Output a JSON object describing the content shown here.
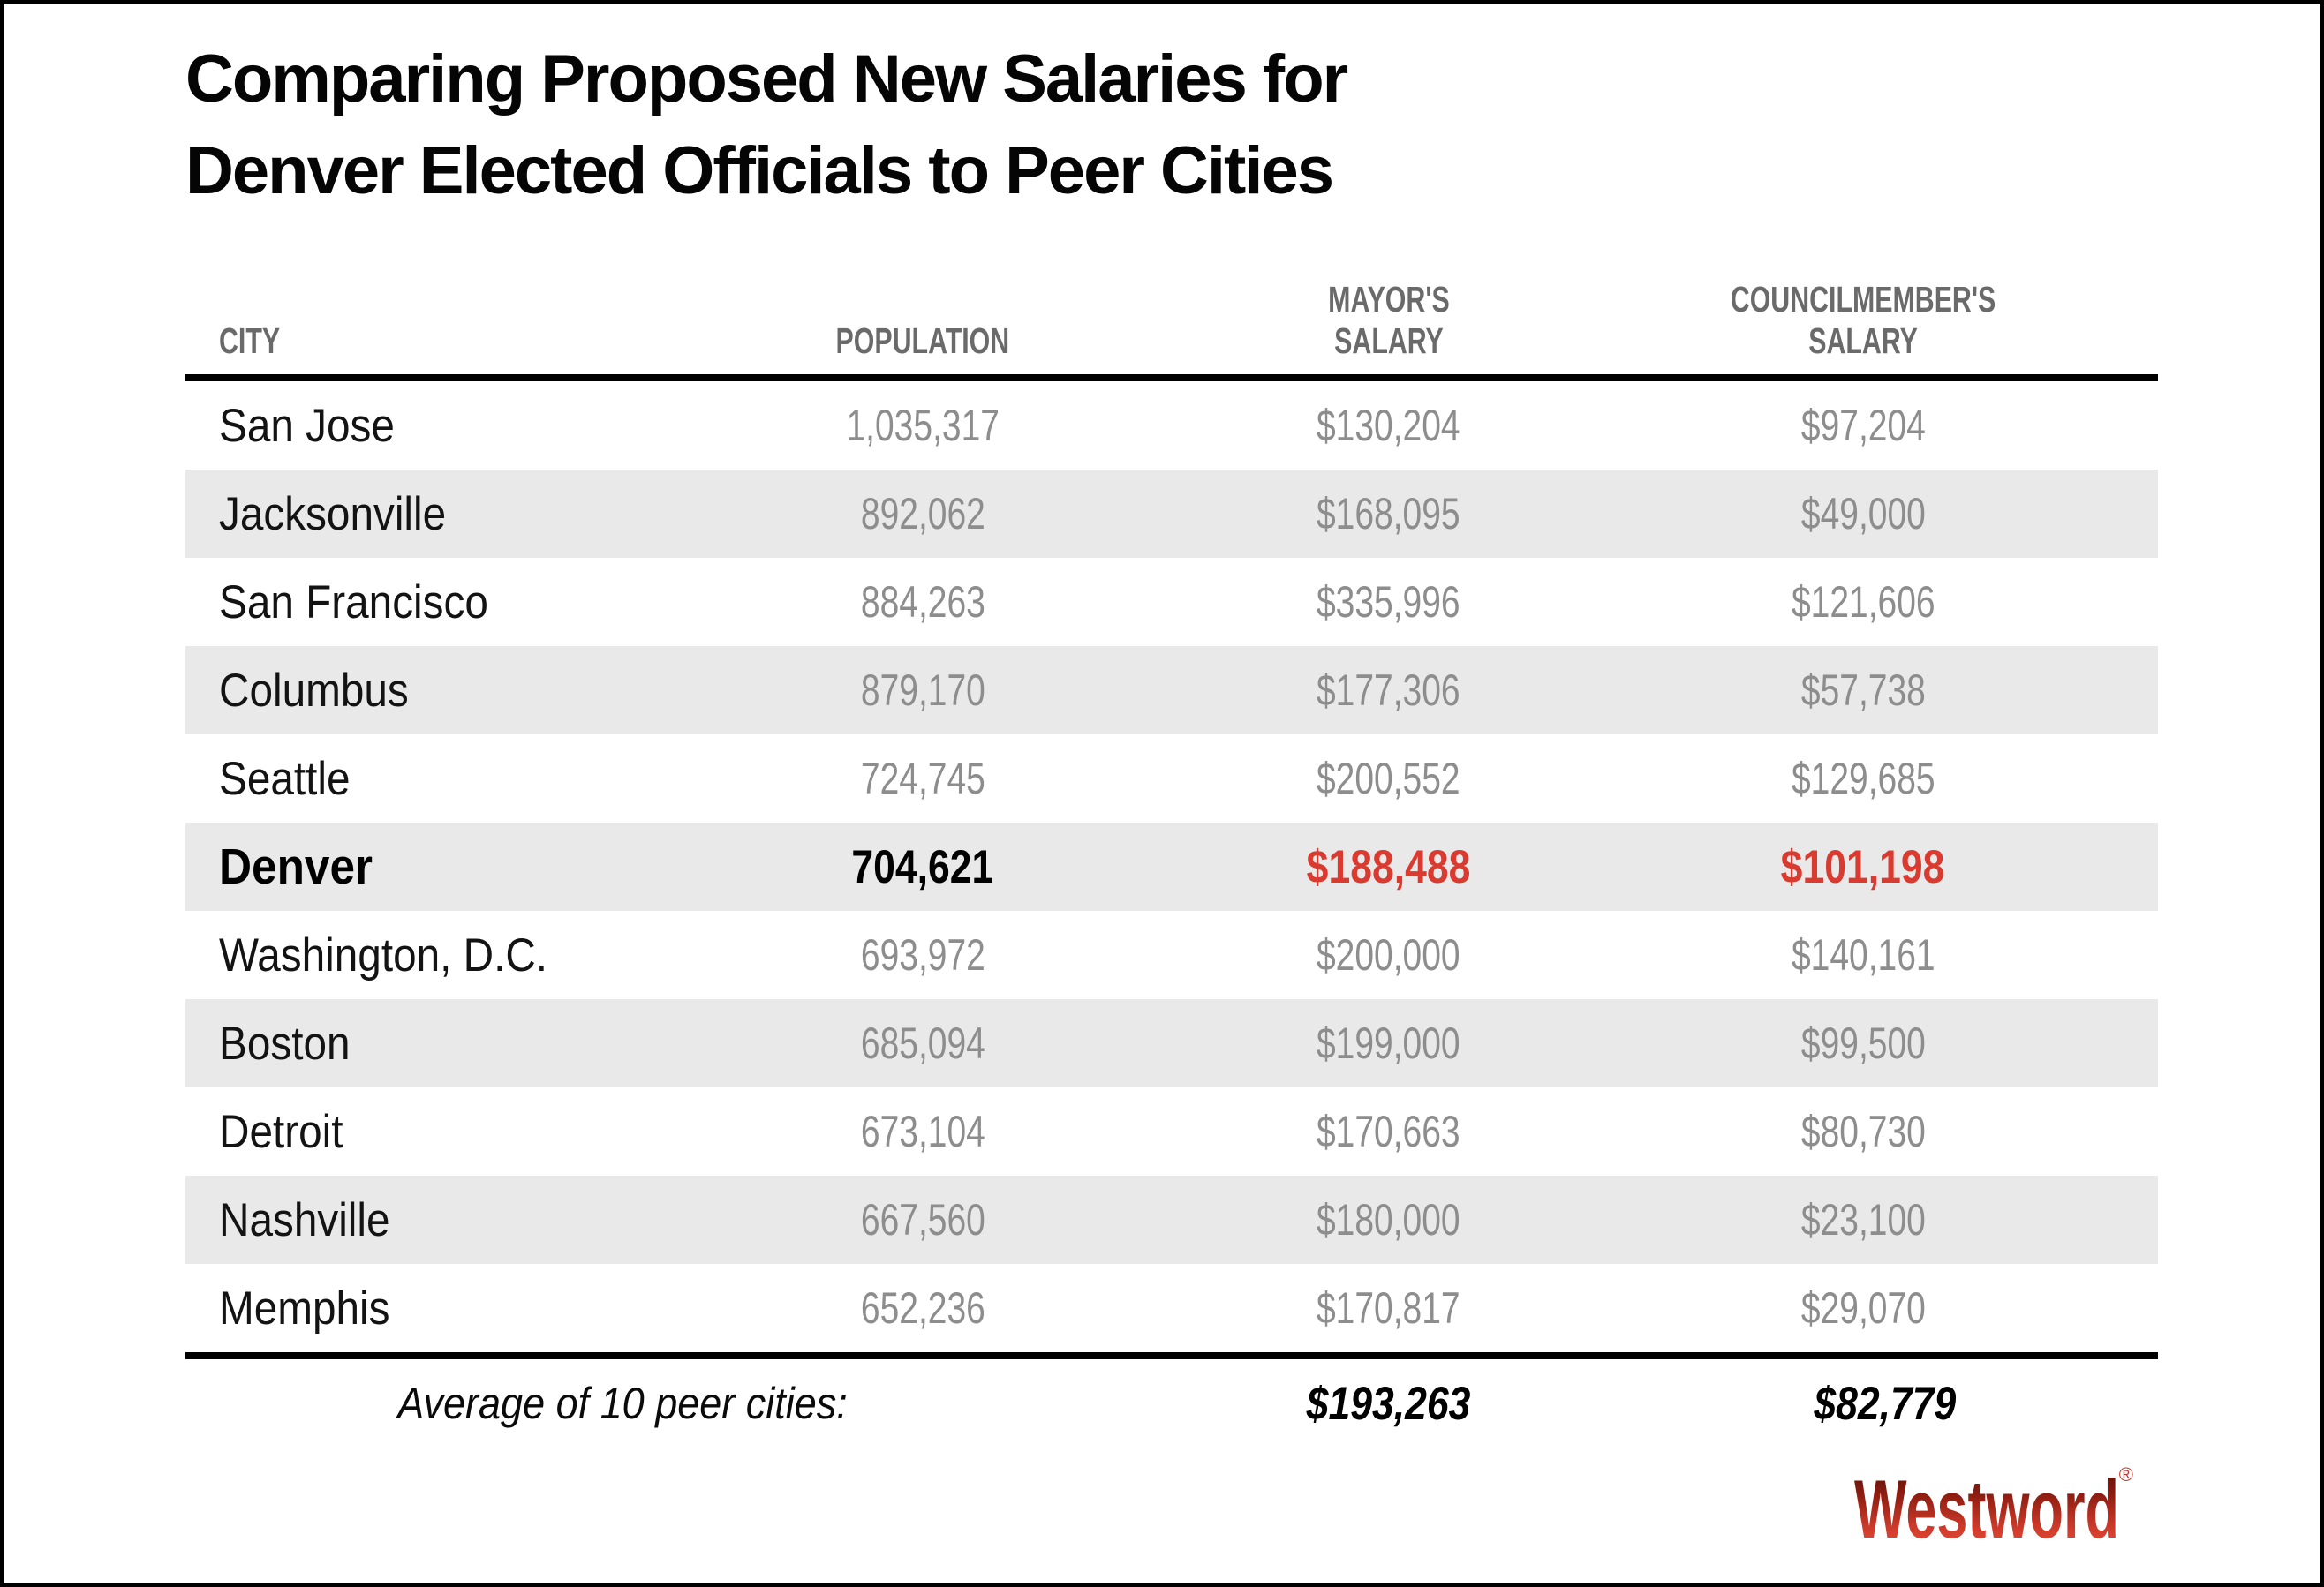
{
  "title": {
    "line1": "Comparing Proposed New Salaries for",
    "line2": "Denver Elected Officials to Peer Cities"
  },
  "header": {
    "city": "CITY",
    "population": "POPULATION",
    "mayor": "MAYOR'S\nSALARY",
    "council": "COUNCILMEMBER'S\nSALARY"
  },
  "rows": [
    {
      "city": "San Jose",
      "population": "1,035,317",
      "mayor": "$130,204",
      "council": "$97,204"
    },
    {
      "city": "Jacksonville",
      "population": "892,062",
      "mayor": "$168,095",
      "council": "$49,000"
    },
    {
      "city": "San Francisco",
      "population": "884,263",
      "mayor": "$335,996",
      "council": "$121,606"
    },
    {
      "city": "Columbus",
      "population": "879,170",
      "mayor": "$177,306",
      "council": "$57,738"
    },
    {
      "city": "Seattle",
      "population": "724,745",
      "mayor": "$200,552",
      "council": "$129,685"
    },
    {
      "city": "Denver",
      "population": "704,621",
      "mayor": "$188,488",
      "council": "$101,198"
    },
    {
      "city": "Washington, D.C.",
      "population": "693,972",
      "mayor": "$200,000",
      "council": "$140,161"
    },
    {
      "city": "Boston",
      "population": "685,094",
      "mayor": "$199,000",
      "council": "$99,500"
    },
    {
      "city": "Detroit",
      "population": "673,104",
      "mayor": "$170,663",
      "council": "$80,730"
    },
    {
      "city": "Nashville",
      "population": "667,560",
      "mayor": "$180,000",
      "council": "$23,100"
    },
    {
      "city": "Memphis",
      "population": "652,236",
      "mayor": "$170,817",
      "council": "$29,070"
    }
  ],
  "footer": {
    "label": "Average of 10 peer cities:",
    "mayor_avg": "$193,263",
    "council_avg": "$82,779"
  },
  "branding": {
    "logo_text": "Westword",
    "registered": "®"
  },
  "colors": {
    "highlight_red": "#d93b30",
    "row_alt_gray": "#e9e9e9",
    "header_gray": "#6a6a6a",
    "value_gray": "#8d8d8d",
    "logo_gradient_top": "#4e0e07",
    "logo_gradient_bottom": "#ec5240"
  },
  "chart_data": {
    "type": "table",
    "title": "Comparing Proposed New Salaries for Denver Elected Officials to Peer Cities",
    "columns": [
      "CITY",
      "POPULATION",
      "MAYOR'S SALARY",
      "COUNCILMEMBER'S SALARY"
    ],
    "rows": [
      [
        "San Jose",
        1035317,
        130204,
        97204
      ],
      [
        "Jacksonville",
        892062,
        168095,
        49000
      ],
      [
        "San Francisco",
        884263,
        335996,
        121606
      ],
      [
        "Columbus",
        879170,
        177306,
        57738
      ],
      [
        "Seattle",
        724745,
        200552,
        129685
      ],
      [
        "Denver",
        704621,
        188488,
        101198
      ],
      [
        "Washington, D.C.",
        693972,
        200000,
        140161
      ],
      [
        "Boston",
        685094,
        199000,
        99500
      ],
      [
        "Detroit",
        673104,
        170663,
        80730
      ],
      [
        "Nashville",
        667560,
        180000,
        23100
      ],
      [
        "Memphis",
        652236,
        170817,
        29070
      ]
    ],
    "footer_averages": {
      "label": "Average of 10 peer cities:",
      "mayor": 193263,
      "council": 82779
    },
    "highlight_row": "Denver",
    "source_brand": "Westword"
  }
}
